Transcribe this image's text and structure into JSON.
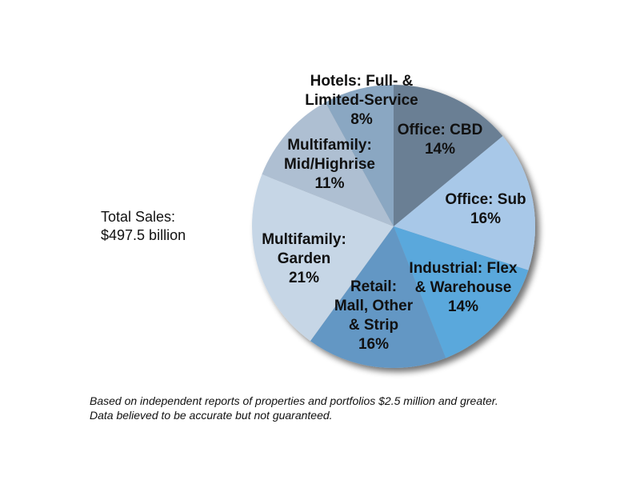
{
  "chart_data": {
    "type": "pie",
    "total_label": [
      "Total Sales:",
      "$497.5 billion"
    ],
    "slices": [
      {
        "label_lines": [
          "Office: CBD"
        ],
        "value": 14,
        "value_label": "14%",
        "color": "#6b7f94"
      },
      {
        "label_lines": [
          "Office: Sub"
        ],
        "value": 16,
        "value_label": "16%",
        "color": "#a8c8e8"
      },
      {
        "label_lines": [
          "Industrial: Flex",
          "& Warehouse"
        ],
        "value": 14,
        "value_label": "14%",
        "color": "#5aa8dc"
      },
      {
        "label_lines": [
          "Retail:",
          "Mall, Other",
          "& Strip"
        ],
        "value": 16,
        "value_label": "16%",
        "color": "#6497c4"
      },
      {
        "label_lines": [
          "Multifamily:",
          "Garden"
        ],
        "value": 21,
        "value_label": "21%",
        "color": "#c6d6e6"
      },
      {
        "label_lines": [
          "Multifamily:",
          "Mid/Highrise"
        ],
        "value": 11,
        "value_label": "11%",
        "color": "#aebfd2"
      },
      {
        "label_lines": [
          "Hotels: Full- &",
          "Limited-Service"
        ],
        "value": 8,
        "value_label": "8%",
        "color": "#8aa7c2"
      }
    ],
    "footnote": [
      "Based on independent reports of properties and portfolios $2.5 million and greater.",
      "Data believed to be accurate but not guaranteed."
    ]
  }
}
